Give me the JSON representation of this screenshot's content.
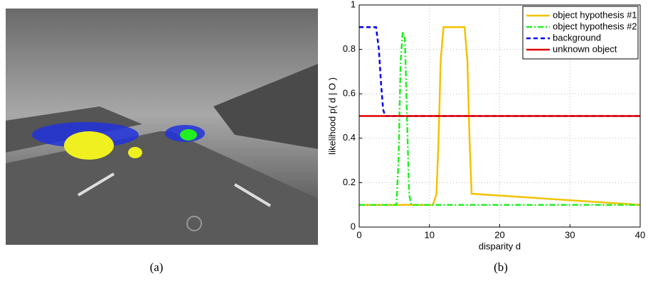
{
  "captions": [
    "(a)",
    "(b)"
  ],
  "chart_data": {
    "type": "line",
    "xlabel": "disparity d",
    "ylabel": "likelihood p( d | O )",
    "xlim": [
      0,
      40
    ],
    "ylim": [
      0,
      1
    ],
    "xticks": [
      0,
      10,
      20,
      30,
      40
    ],
    "yticks": [
      0,
      0.2,
      0.4,
      0.6,
      0.8,
      1
    ],
    "grid": true,
    "legend": "upper-right",
    "series": [
      {
        "name": "object hypothesis #1",
        "color": "#f2c200",
        "style": "solid",
        "x": [
          0,
          10.5,
          11,
          11.3,
          11.6,
          12,
          15,
          15.4,
          15.7,
          16,
          40
        ],
        "values": [
          0.1,
          0.1,
          0.15,
          0.4,
          0.75,
          0.9,
          0.9,
          0.75,
          0.4,
          0.15,
          0.1
        ]
      },
      {
        "name": "object hypothesis #2",
        "color": "#22ee22",
        "style": "dashdot",
        "x": [
          0,
          5.3,
          5.6,
          5.9,
          6.2,
          6.5,
          6.8,
          7.1,
          7.4,
          40
        ],
        "values": [
          0.1,
          0.1,
          0.3,
          0.75,
          0.88,
          0.85,
          0.5,
          0.15,
          0.1,
          0.1
        ]
      },
      {
        "name": "background",
        "color": "#0000ee",
        "style": "dash",
        "x": [
          0,
          2.4,
          2.8,
          3.1,
          3.4,
          3.7,
          40
        ],
        "values": [
          0.9,
          0.9,
          0.8,
          0.65,
          0.53,
          0.5,
          0.5
        ]
      },
      {
        "name": "unknown object",
        "color": "#e00000",
        "style": "solid",
        "x": [
          0,
          40
        ],
        "values": [
          0.5,
          0.5
        ]
      }
    ]
  }
}
